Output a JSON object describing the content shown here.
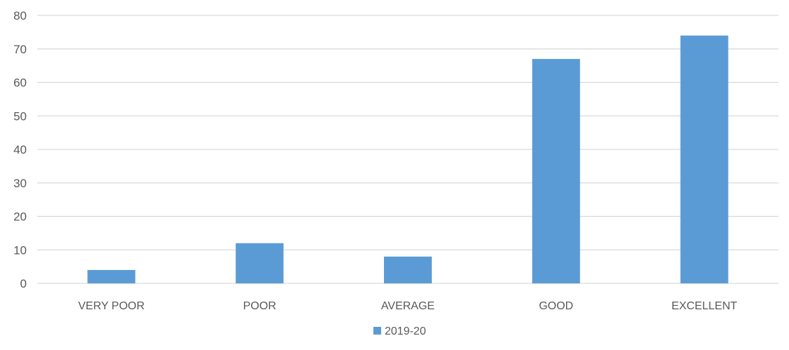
{
  "chart_data": {
    "type": "bar",
    "categories": [
      "VERY POOR",
      "POOR",
      "AVERAGE",
      "GOOD",
      "EXCELLENT"
    ],
    "series": [
      {
        "name": "2019-20",
        "values": [
          4,
          12,
          8,
          67,
          74
        ],
        "color": "#5b9bd5"
      }
    ],
    "ylim": [
      0,
      80
    ],
    "y_ticks": [
      0,
      10,
      20,
      30,
      40,
      50,
      60,
      70,
      80
    ],
    "grid": "horizontal",
    "legend_position": "bottom",
    "gridline_color": "#d9d9d9"
  }
}
